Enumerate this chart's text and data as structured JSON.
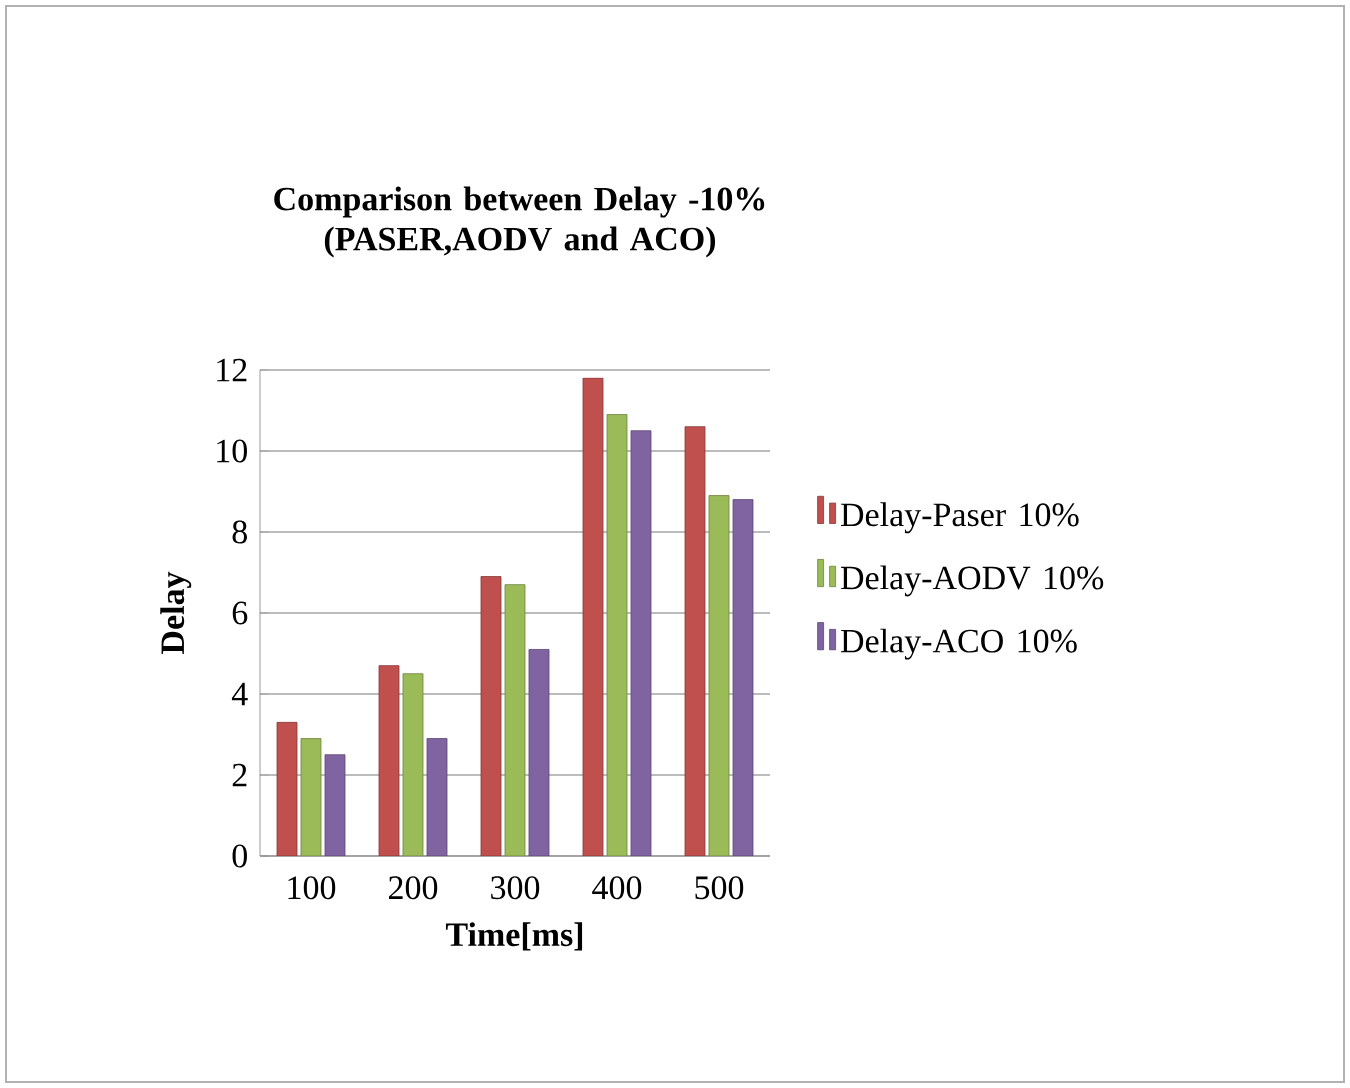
{
  "chart_data": {
    "type": "bar",
    "title": "Comparison between Delay -10%\n(PASER,AODV and ACO)",
    "xlabel": "Time[ms]",
    "ylabel": "Delay",
    "categories": [
      "100",
      "200",
      "300",
      "400",
      "500"
    ],
    "series": [
      {
        "name": "Delay-Paser 10%",
        "color": "#c0504d",
        "values": [
          3.3,
          4.7,
          6.9,
          11.8,
          10.6
        ]
      },
      {
        "name": "Delay-AODV 10%",
        "color": "#9bbb59",
        "values": [
          2.9,
          4.5,
          6.7,
          10.9,
          8.9
        ]
      },
      {
        "name": "Delay-ACO 10%",
        "color": "#8064a2",
        "values": [
          2.5,
          2.9,
          5.1,
          10.5,
          8.8
        ]
      }
    ],
    "ylim": [
      0,
      12
    ],
    "yticks": [
      0,
      2,
      4,
      6,
      8,
      10,
      12
    ],
    "grid": "y",
    "legend": "right"
  }
}
